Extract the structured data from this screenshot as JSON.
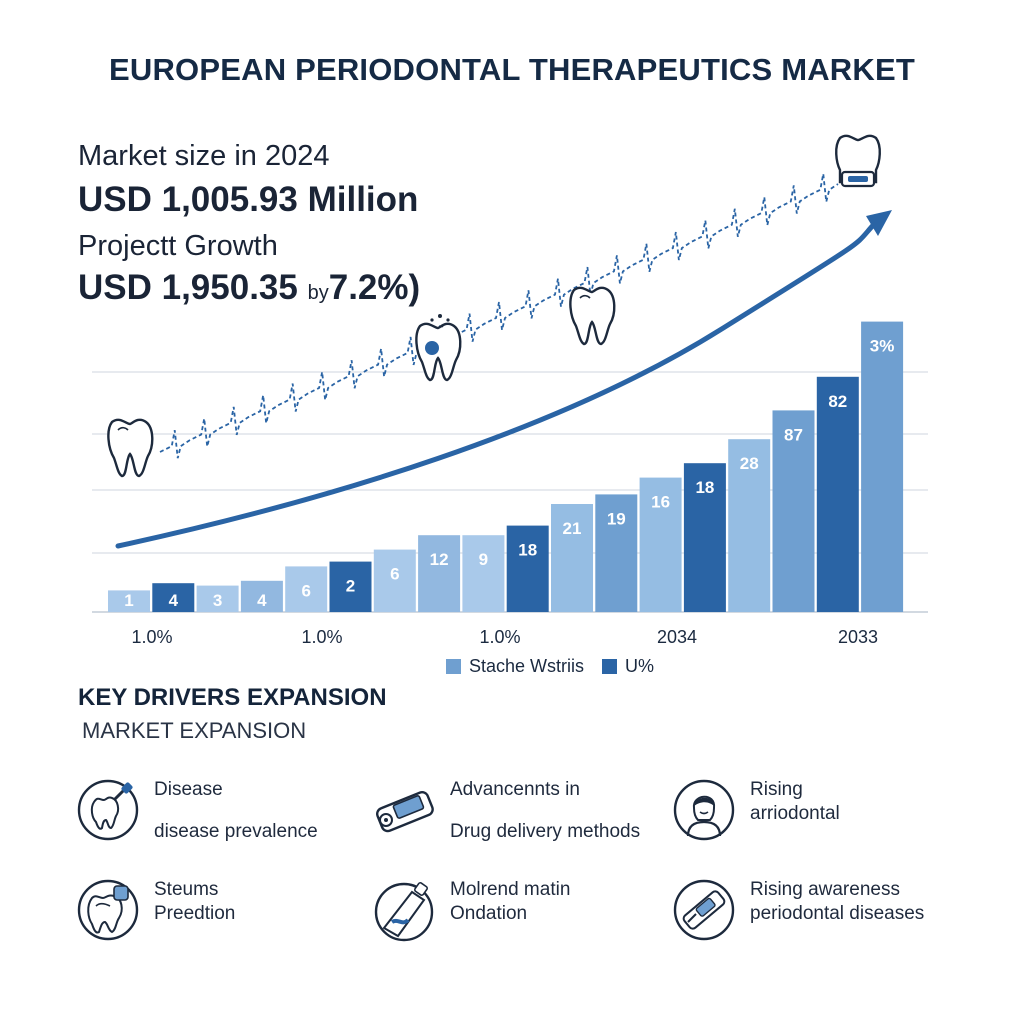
{
  "title": "EUROPEAN PERIODONTAL THERAPEUTICS MARKET",
  "market_size": {
    "label": "Market size in 2024",
    "value": "USD 1,005.93 Million"
  },
  "growth": {
    "label": "Projectt Growth",
    "value": "USD 1,950.35",
    "by": "by",
    "rate": "7.2%)"
  },
  "legend": [
    {
      "label": "Stache Wstriis",
      "color": "#6f9fd0"
    },
    {
      "label": "U%",
      "color": "#2a64a5"
    }
  ],
  "section": {
    "title": "KEY DRIVERS EXPANSION",
    "subtitle": "MARKET EXPANSION"
  },
  "drivers": [
    {
      "icon": "tooth-brush-icon",
      "line1": "Disease",
      "line2": "disease prevalence",
      "spaced": true
    },
    {
      "icon": "drug-delivery-device-icon",
      "line1": "Advancennts in",
      "line2": "Drug delivery methods",
      "spaced": true
    },
    {
      "icon": "person-icon",
      "line1": "Rising",
      "line2": "arriodontal",
      "spaced": false
    },
    {
      "icon": "tooth-decay-icon",
      "line1": "Steums",
      "line2": "Preedtion",
      "spaced": false
    },
    {
      "icon": "toothpaste-tube-icon",
      "line1": "Molrend matin",
      "line2": "Ondation",
      "spaced": false
    },
    {
      "icon": "floss-tool-icon",
      "line1": "Rising awareness",
      "line2": "periodontal diseases",
      "spaced": false
    }
  ],
  "chart_data": {
    "type": "bar",
    "series": [
      {
        "values": [
          1,
          4,
          3,
          4,
          6,
          2,
          6,
          12,
          9,
          18,
          21,
          19,
          16,
          18,
          28,
          87,
          82,
          3
        ],
        "labels": [
          "1",
          "4",
          "3",
          "4",
          "6",
          "2",
          "6",
          "12",
          "9",
          "18",
          "21",
          "19",
          "16",
          "18",
          "28",
          "87",
          "82",
          "3%"
        ],
        "heights": [
          0.09,
          0.12,
          0.11,
          0.13,
          0.19,
          0.21,
          0.26,
          0.32,
          0.32,
          0.36,
          0.45,
          0.49,
          0.56,
          0.62,
          0.72,
          0.84,
          0.98,
          1.21
        ],
        "dark": [
          false,
          true,
          false,
          false,
          false,
          true,
          false,
          false,
          false,
          true,
          false,
          false,
          false,
          true,
          false,
          false,
          true,
          false
        ]
      }
    ],
    "x_tick_labels": [
      "1.0%",
      "1.0%",
      "1.0%",
      "2034",
      "2033"
    ],
    "colors": {
      "light": "#95bde3",
      "mid": "#6f9fd0",
      "dark": "#2a64a5",
      "trend": "#2a64a5",
      "grid": "#cfd6df"
    },
    "grid": true,
    "trend_arrow": true
  }
}
